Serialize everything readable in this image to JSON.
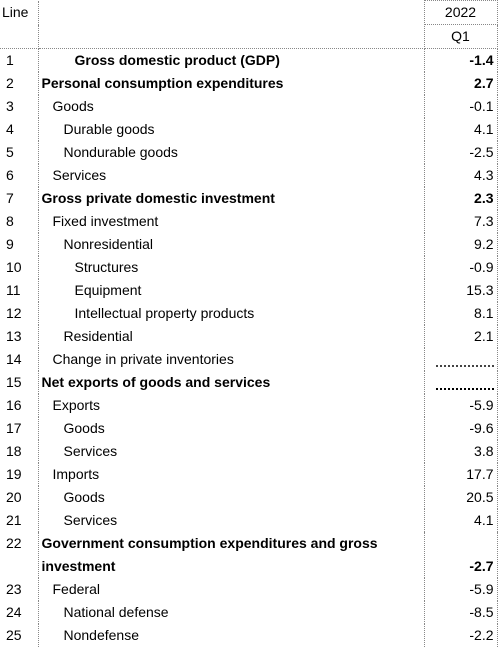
{
  "header": {
    "line": "Line",
    "year": "2022",
    "quarter": "Q1"
  },
  "table": {
    "rows": [
      [
        "1",
        "Gross domestic product (GDP)",
        "-1.4"
      ],
      [
        "2",
        "Personal consumption expenditures",
        "2.7"
      ],
      [
        "3",
        "Goods",
        "-0.1"
      ],
      [
        "4",
        "Durable goods",
        "4.1"
      ],
      [
        "5",
        "Nondurable goods",
        "-2.5"
      ],
      [
        "6",
        "Services",
        "4.3"
      ],
      [
        "7",
        "Gross private domestic investment",
        "2.3"
      ],
      [
        "8",
        "Fixed investment",
        "7.3"
      ],
      [
        "9",
        "Nonresidential",
        "9.2"
      ],
      [
        "10",
        "Structures",
        "-0.9"
      ],
      [
        "11",
        "Equipment",
        "15.3"
      ],
      [
        "12",
        "Intellectual property products",
        "8.1"
      ],
      [
        "13",
        "Residential",
        "2.1"
      ],
      [
        "14",
        "Change in private inventories"
      ],
      [
        "15",
        "Net exports of goods and services"
      ],
      [
        "16",
        "Exports",
        "-5.9"
      ],
      [
        "17",
        "Goods",
        "-9.6"
      ],
      [
        "18",
        "Services",
        "3.8"
      ],
      [
        "19",
        "Imports",
        "17.7"
      ],
      [
        "20",
        "Goods",
        "20.5"
      ],
      [
        "21",
        "Services",
        "4.1"
      ],
      [
        "22",
        "Government consumption expenditures and gross investment",
        "-2.7"
      ],
      [
        "23",
        "Federal",
        "-5.9"
      ],
      [
        "24",
        "National defense",
        "-8.5"
      ],
      [
        "25",
        "Nondefense",
        "-2.2"
      ]
    ]
  }
}
